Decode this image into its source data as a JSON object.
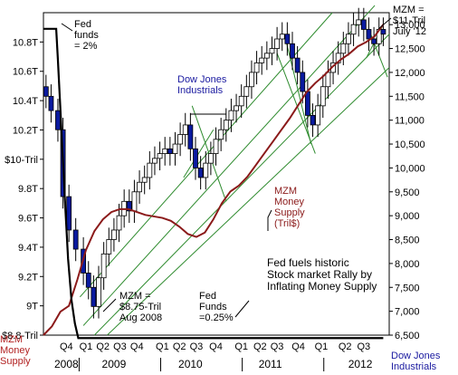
{
  "chart_data": {
    "type": "line",
    "title": "Fed fuels historic Stock market Rally by Inflating Money Supply",
    "x_axis": {
      "quarters": [
        "Q4",
        "Q1",
        "Q2",
        "Q3",
        "Q4",
        "Q1",
        "Q2",
        "Q3",
        "Q4",
        "Q1",
        "Q2",
        "Q3",
        "Q4",
        "Q1",
        "Q2",
        "Q3"
      ],
      "years": [
        "2008",
        "2009",
        "2010",
        "2011",
        "2012"
      ],
      "range": [
        "2008-Q4",
        "2012-Q3"
      ]
    },
    "left_axis": {
      "label": "MZM Money Supply",
      "unit": "Tril$",
      "ticks": [
        "$8.8-Tril",
        "9T",
        "9.2T",
        "9.4T",
        "9.6T",
        "9.8T",
        "$10-Tril",
        "10.2T",
        "10.4T",
        "10.6T",
        "10.8T"
      ],
      "ylim": [
        8.8,
        11.0
      ]
    },
    "right_axis": {
      "label": "Dow Jones Industrials",
      "ticks": [
        "6,500",
        "7,000",
        "7,500",
        "8,000",
        "8,500",
        "9,000",
        "9,500",
        "10,000",
        "10,500",
        "11,000",
        "11,500",
        "12,000",
        "12,500",
        "13,000"
      ],
      "ylim": [
        6500,
        13250
      ]
    },
    "series": [
      {
        "name": "MZM Money Supply (Tril$)",
        "color": "#8b1a1a",
        "axis": "left",
        "x": [
          2008.55,
          2008.65,
          2008.75,
          2008.85,
          2008.95,
          2009.05,
          2009.15,
          2009.25,
          2009.35,
          2009.45,
          2009.55,
          2009.65,
          2009.75,
          2009.85,
          2009.95,
          2010.05,
          2010.15,
          2010.25,
          2010.35,
          2010.45,
          2010.55,
          2010.65,
          2010.75,
          2010.85,
          2010.95,
          2011.05,
          2011.15,
          2011.25,
          2011.35,
          2011.45,
          2011.55,
          2011.65,
          2011.75,
          2011.85,
          2011.95,
          2012.05,
          2012.15,
          2012.25,
          2012.35,
          2012.45,
          2012.55
        ],
        "values": [
          8.8,
          8.86,
          8.96,
          9.0,
          9.18,
          9.38,
          9.51,
          9.59,
          9.64,
          9.66,
          9.66,
          9.64,
          9.62,
          9.61,
          9.6,
          9.58,
          9.54,
          9.49,
          9.47,
          9.5,
          9.59,
          9.7,
          9.78,
          9.82,
          9.88,
          9.96,
          10.04,
          10.12,
          10.2,
          10.28,
          10.37,
          10.46,
          10.52,
          10.57,
          10.63,
          10.68,
          10.72,
          10.77,
          10.8,
          10.84,
          10.92
        ]
      },
      {
        "name": "Fed funds rate",
        "color": "#000000",
        "axis": "left",
        "x": [
          2008.55,
          2008.7,
          2008.72,
          2008.76,
          2008.8,
          2008.84,
          2008.88,
          2008.92,
          2008.96,
          2012.55
        ],
        "values": [
          10.89,
          10.89,
          10.68,
          10.22,
          9.75,
          9.32,
          9.04,
          8.88,
          8.78,
          8.78
        ]
      }
    ],
    "dow_candles": {
      "name": "Dow Jones Industrials",
      "note": "quarterly-ish candlesticks, close values",
      "x": [
        2008.58,
        2008.64,
        2008.72,
        2008.78,
        2008.85,
        2008.93,
        2009.02,
        2009.08,
        2009.14,
        2009.2,
        2009.26,
        2009.32,
        2009.38,
        2009.44,
        2009.5,
        2009.56,
        2009.62,
        2009.68,
        2009.74,
        2009.8,
        2009.86,
        2009.92,
        2009.98,
        2010.04,
        2010.1,
        2010.16,
        2010.22,
        2010.28,
        2010.34,
        2010.4,
        2010.46,
        2010.52,
        2010.58,
        2010.64,
        2010.7,
        2010.76,
        2010.82,
        2010.88,
        2010.94,
        2011.0,
        2011.06,
        2011.12,
        2011.18,
        2011.24,
        2011.3,
        2011.36,
        2011.42,
        2011.48,
        2011.54,
        2011.6,
        2011.66,
        2011.72,
        2011.78,
        2011.84,
        2011.9,
        2011.96,
        2012.02,
        2012.08,
        2012.14,
        2012.2,
        2012.26,
        2012.32,
        2012.38,
        2012.44,
        2012.5,
        2012.55
      ],
      "values": [
        11500,
        11200,
        10800,
        9400,
        8700,
        8300,
        7800,
        7500,
        7100,
        7700,
        8200,
        8500,
        8700,
        9000,
        9300,
        9100,
        9500,
        9700,
        9800,
        10100,
        10200,
        10300,
        10400,
        10300,
        10500,
        10700,
        10900,
        10400,
        10000,
        9800,
        10100,
        10300,
        10600,
        10800,
        11000,
        11200,
        11300,
        11500,
        11700,
        12000,
        12200,
        12300,
        12400,
        12500,
        12700,
        12800,
        12600,
        12300,
        12000,
        11600,
        11100,
        10900,
        11300,
        11700,
        12000,
        12200,
        12400,
        12600,
        12800,
        13000,
        13100,
        12900,
        12700,
        12600,
        12900,
        12800
      ]
    },
    "annotations": [
      {
        "text_lines": [
          "Fed",
          "funds",
          "= 2%"
        ],
        "color": "#000000"
      },
      {
        "text_lines": [
          "Dow Jones",
          "Industrials"
        ],
        "color": "#1a1aa0"
      },
      {
        "text_lines": [
          "MZM =",
          "$11-Tril",
          "July '12"
        ],
        "color": "#000000"
      },
      {
        "text_lines": [
          "MZM",
          "Money",
          "Supply",
          "(Tril$)"
        ],
        "color": "#8b1a1a"
      },
      {
        "text_lines": [
          "MZM =",
          "$8.75-Tril",
          "Aug 2008"
        ],
        "color": "#000000"
      },
      {
        "text_lines": [
          "Fed",
          "Funds",
          "=0.25%"
        ],
        "color": "#000000"
      },
      {
        "text_lines": [
          "Fed fuels historic",
          "Stock market Rally by",
          "Inflating Money Supply"
        ],
        "color": "#000000"
      }
    ],
    "bottom_labels": {
      "left": [
        "MZM",
        "Money",
        "Supply"
      ],
      "left_color": "#b22222",
      "right": [
        "Dow Jones",
        "Industrials"
      ],
      "right_color": "#1a1aa0"
    },
    "channel_color": "#2e8b2e",
    "grid": false
  }
}
